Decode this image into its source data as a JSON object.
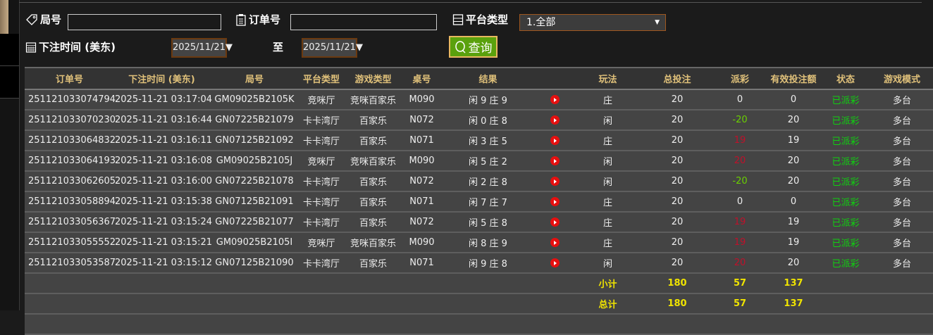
{
  "filters": {
    "round_label": "局号",
    "round_value": "",
    "order_label": "订单号",
    "order_value": "",
    "platform_label": "平台类型",
    "platform_value": "1.全部",
    "time_label": "下注时间 (美东)",
    "date_from": "2025/11/21",
    "to_label": "至",
    "date_to": "2025/11/21",
    "query_label": "查询"
  },
  "table": {
    "headers": [
      "订单号",
      "下注时间 (美东)",
      "局号",
      "平台类型",
      "游戏类型",
      "桌号",
      "结果",
      "",
      "玩法",
      "总投注",
      "派彩",
      "有效投注额",
      "状态",
      "游戏模式"
    ],
    "rows": [
      {
        "order": "251121033074794",
        "time": "2025-11-21 03:17:04",
        "round": "GM09025B2105K",
        "platform": "竞咪厅",
        "game": "竞咪百家乐",
        "table": "M090",
        "result": "闲 9 庄 9",
        "play": "庄",
        "bet": "20",
        "payout": "0",
        "payout_color": "#eeeeee",
        "valid": "0",
        "status": "已派彩",
        "mode": "多台"
      },
      {
        "order": "251121033070230",
        "time": "2025-11-21 03:16:44",
        "round": "GN07225B21079",
        "platform": "卡卡湾厅",
        "game": "百家乐",
        "table": "N072",
        "result": "闲 0 庄 8",
        "play": "闲",
        "bet": "20",
        "payout": "-20",
        "payout_color": "#6ad000",
        "valid": "20",
        "status": "已派彩",
        "mode": "多台"
      },
      {
        "order": "251121033064832",
        "time": "2025-11-21 03:16:11",
        "round": "GN07125B21092",
        "platform": "卡卡湾厅",
        "game": "百家乐",
        "table": "N071",
        "result": "闲 3 庄 5",
        "play": "庄",
        "bet": "20",
        "payout": "19",
        "payout_color": "#c0102a",
        "valid": "19",
        "status": "已派彩",
        "mode": "多台"
      },
      {
        "order": "251121033064193",
        "time": "2025-11-21 03:16:08",
        "round": "GM09025B2105J",
        "platform": "竞咪厅",
        "game": "竞咪百家乐",
        "table": "M090",
        "result": "闲 5 庄 2",
        "play": "闲",
        "bet": "20",
        "payout": "20",
        "payout_color": "#c0102a",
        "valid": "20",
        "status": "已派彩",
        "mode": "多台"
      },
      {
        "order": "251121033062605",
        "time": "2025-11-21 03:16:00",
        "round": "GN07225B21078",
        "platform": "卡卡湾厅",
        "game": "百家乐",
        "table": "N072",
        "result": "闲 2 庄 8",
        "play": "闲",
        "bet": "20",
        "payout": "-20",
        "payout_color": "#6ad000",
        "valid": "20",
        "status": "已派彩",
        "mode": "多台"
      },
      {
        "order": "251121033058894",
        "time": "2025-11-21 03:15:38",
        "round": "GN07125B21091",
        "platform": "卡卡湾厅",
        "game": "百家乐",
        "table": "N071",
        "result": "闲 7 庄 7",
        "play": "庄",
        "bet": "20",
        "payout": "0",
        "payout_color": "#eeeeee",
        "valid": "0",
        "status": "已派彩",
        "mode": "多台"
      },
      {
        "order": "251121033056367",
        "time": "2025-11-21 03:15:24",
        "round": "GN07225B21077",
        "platform": "卡卡湾厅",
        "game": "百家乐",
        "table": "N072",
        "result": "闲 5 庄 8",
        "play": "庄",
        "bet": "20",
        "payout": "19",
        "payout_color": "#c0102a",
        "valid": "19",
        "status": "已派彩",
        "mode": "多台"
      },
      {
        "order": "251121033055552",
        "time": "2025-11-21 03:15:21",
        "round": "GM09025B2105I",
        "platform": "竞咪厅",
        "game": "竞咪百家乐",
        "table": "M090",
        "result": "闲 8 庄 9",
        "play": "庄",
        "bet": "20",
        "payout": "19",
        "payout_color": "#c0102a",
        "valid": "19",
        "status": "已派彩",
        "mode": "多台"
      },
      {
        "order": "251121033053587",
        "time": "2025-11-21 03:15:12",
        "round": "GN07125B21090",
        "platform": "卡卡湾厅",
        "game": "百家乐",
        "table": "N071",
        "result": "闲 9 庄 8",
        "play": "闲",
        "bet": "20",
        "payout": "20",
        "payout_color": "#c0102a",
        "valid": "20",
        "status": "已派彩",
        "mode": "多台"
      }
    ],
    "subtotal": {
      "label": "小计",
      "bet": "180",
      "payout": "57",
      "valid": "137"
    },
    "total": {
      "label": "总计",
      "bet": "180",
      "payout": "57",
      "valid": "137"
    }
  },
  "colors": {
    "header_text": "#e0c17a",
    "status_green": "#10d010",
    "sum_yellow": "#f0e400",
    "query_green": "#5aa10d"
  }
}
